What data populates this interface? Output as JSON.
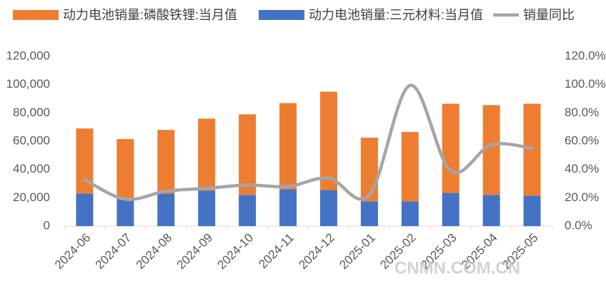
{
  "chart_data": {
    "type": "bar-line",
    "categories": [
      "2024-06",
      "2024-07",
      "2024-08",
      "2024-09",
      "2024-10",
      "2024-11",
      "2024-12",
      "2025-01",
      "2025-02",
      "2025-03",
      "2025-04",
      "2025-05"
    ],
    "series": [
      {
        "name": "动力电池销量:三元材料:当月值",
        "color": "#4472c4",
        "kind": "bar",
        "values": [
          23000,
          19000,
          23000,
          25000,
          22000,
          26000,
          25500,
          17500,
          17500,
          23500,
          22000,
          21500
        ]
      },
      {
        "name": "动力电池销量:磷酸铁锂:当月值",
        "color": "#ed7d31",
        "kind": "bar",
        "values": [
          46000,
          42500,
          45000,
          51000,
          57000,
          61000,
          69500,
          45000,
          49000,
          63000,
          63500,
          65000
        ]
      },
      {
        "name": "销量同比",
        "color": "#a5a5a5",
        "kind": "line",
        "axis": "y2",
        "values": [
          32.8,
          19,
          24.7,
          26.7,
          29,
          28,
          34,
          22,
          99.5,
          39,
          57.5,
          55
        ]
      }
    ],
    "legend_order": [
      1,
      0,
      2
    ],
    "ylim": [
      0,
      120000
    ],
    "yticks": [
      0,
      {
        "value": 20000,
        "label": "20,000"
      },
      {
        "value": 40000,
        "label": "40,000"
      },
      {
        "value": 60000,
        "label": "60,000"
      },
      {
        "value": 80000,
        "label": "80,000"
      },
      {
        "value": 100000,
        "label": "100,000"
      },
      {
        "value": 120000,
        "label": "120,000"
      }
    ],
    "y2lim": [
      0,
      120
    ],
    "y2ticks": [
      {
        "value": 0,
        "label": "0.0%"
      },
      {
        "value": 20,
        "label": "20.0%"
      },
      {
        "value": 40,
        "label": "40.0%"
      },
      {
        "value": 60,
        "label": "60.0%"
      },
      {
        "value": 80,
        "label": "80.0%"
      },
      {
        "value": 100,
        "label": "100.0%"
      },
      {
        "value": 120,
        "label": "120.0%"
      }
    ],
    "grid": false,
    "watermark": "CNMN.COM.CN"
  }
}
